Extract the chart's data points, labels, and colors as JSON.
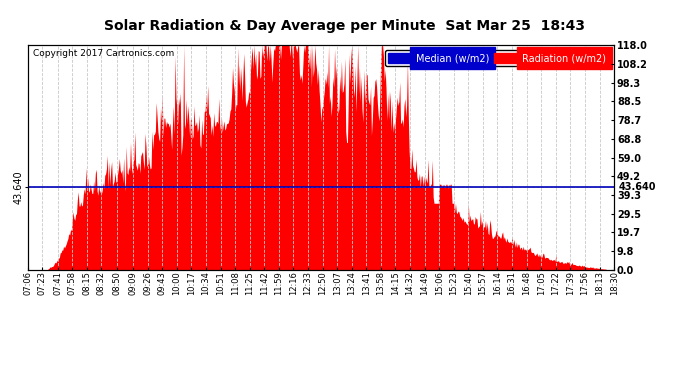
{
  "title": "Solar Radiation & Day Average per Minute  Sat Mar 25  18:43",
  "copyright": "Copyright 2017 Cartronics.com",
  "median_value": 43.64,
  "y_max": 118.0,
  "y_min": 0.0,
  "ytick_values": [
    0.0,
    9.8,
    19.7,
    29.5,
    39.3,
    49.2,
    59.0,
    68.8,
    78.7,
    88.5,
    98.3,
    108.2,
    118.0
  ],
  "background_color": "#ffffff",
  "grid_color": "#c8c8c8",
  "bar_color": "#ff0000",
  "median_color": "#0000bb",
  "legend_median_bg": "#0000cc",
  "legend_radiation_bg": "#ff0000",
  "xtick_labels": [
    "07:06",
    "07:23",
    "07:41",
    "07:58",
    "08:15",
    "08:32",
    "08:50",
    "09:09",
    "09:26",
    "09:43",
    "10:00",
    "10:17",
    "10:34",
    "10:51",
    "11:08",
    "11:25",
    "11:42",
    "11:59",
    "12:16",
    "12:33",
    "12:50",
    "13:07",
    "13:24",
    "13:41",
    "13:58",
    "14:15",
    "14:32",
    "14:49",
    "15:06",
    "15:23",
    "15:40",
    "15:57",
    "16:14",
    "16:31",
    "16:48",
    "17:05",
    "17:22",
    "17:39",
    "17:56",
    "18:13",
    "18:30"
  ],
  "median_label": "Median (w/m2)",
  "radiation_label": "Radiation (w/m2)"
}
